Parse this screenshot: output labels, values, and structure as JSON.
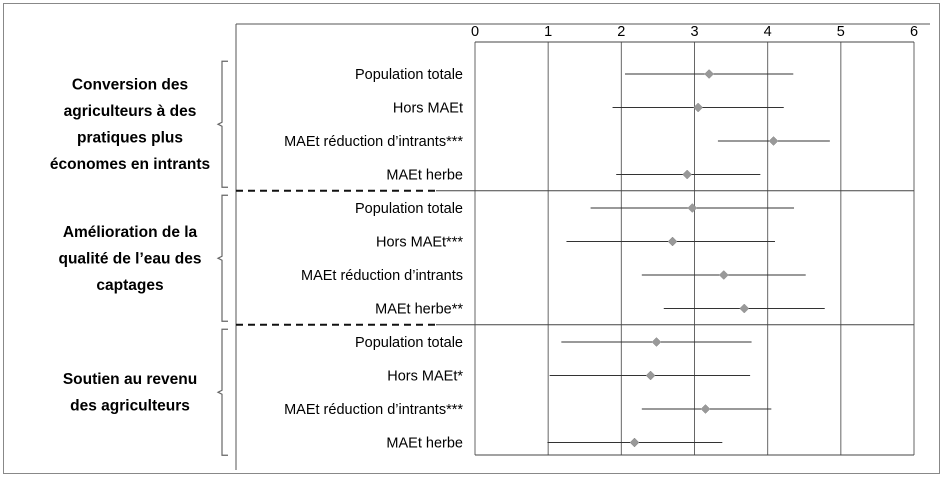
{
  "chart_data": {
    "type": "scatter",
    "xlim": [
      0,
      6
    ],
    "x_ticks": [
      "0",
      "1",
      "2",
      "3",
      "4",
      "5",
      "6"
    ],
    "grid": true,
    "groups": [
      {
        "label_lines": [
          "Conversion des",
          "agriculteurs à des",
          "pratiques plus",
          "économes en intrants"
        ],
        "rows": [
          {
            "label": "Population totale",
            "mean": 3.2,
            "low": 2.05,
            "high": 4.35
          },
          {
            "label": "Hors MAEt",
            "mean": 3.05,
            "low": 1.88,
            "high": 4.22
          },
          {
            "label": "MAEt réduction d’intrants***",
            "mean": 4.08,
            "low": 3.32,
            "high": 4.85
          },
          {
            "label": "MAEt herbe",
            "mean": 2.9,
            "low": 1.93,
            "high": 3.9
          }
        ]
      },
      {
        "label_lines": [
          "Amélioration de la",
          "qualité de l’eau des",
          "captages"
        ],
        "rows": [
          {
            "label": "Population totale",
            "mean": 2.97,
            "low": 1.58,
            "high": 4.36
          },
          {
            "label": "Hors MAEt***",
            "mean": 2.7,
            "low": 1.25,
            "high": 4.1
          },
          {
            "label": "MAEt réduction d’intrants",
            "mean": 3.4,
            "low": 2.28,
            "high": 4.52
          },
          {
            "label": "MAEt herbe**",
            "mean": 3.68,
            "low": 2.58,
            "high": 4.78
          }
        ]
      },
      {
        "label_lines": [
          "Soutien au revenu",
          "des agriculteurs"
        ],
        "rows": [
          {
            "label": "Population totale",
            "mean": 2.48,
            "low": 1.18,
            "high": 3.78
          },
          {
            "label": "Hors MAEt*",
            "mean": 2.4,
            "low": 1.02,
            "high": 3.76
          },
          {
            "label": "MAEt réduction d’intrants***",
            "mean": 3.15,
            "low": 2.28,
            "high": 4.05
          },
          {
            "label": "MAEt herbe",
            "mean": 2.18,
            "low": 0.99,
            "high": 3.38
          }
        ]
      }
    ]
  }
}
